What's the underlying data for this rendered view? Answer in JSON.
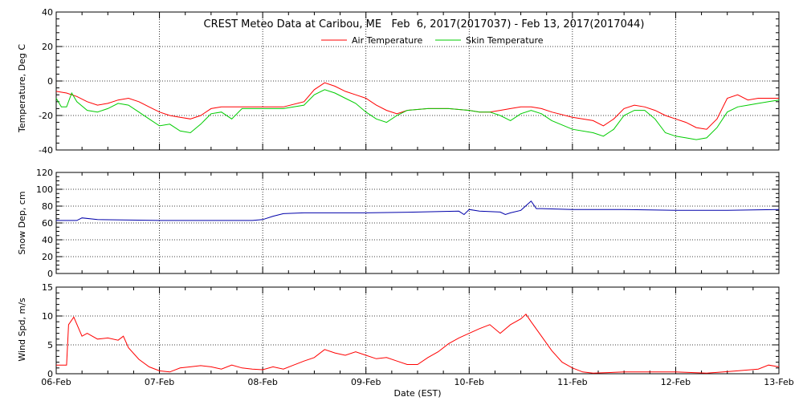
{
  "chart_data": [
    {
      "type": "line",
      "title": "CREST Meteo Data at Caribou, ME   Feb  6, 2017(2017037) - Feb 13, 2017(2017044)",
      "ylabel": "Temperature, Deg C",
      "ylim": [
        -40,
        40
      ],
      "yticks": [
        "40",
        "20",
        "0",
        "-20",
        "-40"
      ],
      "grid": true,
      "legend": "top-center",
      "series": [
        {
          "name": "Air Temperature",
          "color": "#ff0000",
          "points": [
            [
              0,
              -6
            ],
            [
              0.1,
              -7
            ],
            [
              0.2,
              -9
            ],
            [
              0.3,
              -12
            ],
            [
              0.4,
              -14
            ],
            [
              0.5,
              -13
            ],
            [
              0.6,
              -11
            ],
            [
              0.7,
              -10
            ],
            [
              0.8,
              -12
            ],
            [
              0.9,
              -15
            ],
            [
              1.0,
              -18
            ],
            [
              1.1,
              -20
            ],
            [
              1.2,
              -21
            ],
            [
              1.3,
              -22
            ],
            [
              1.4,
              -20
            ],
            [
              1.5,
              -16
            ],
            [
              1.6,
              -15
            ],
            [
              1.8,
              -15
            ],
            [
              2.0,
              -15
            ],
            [
              2.2,
              -15
            ],
            [
              2.4,
              -12
            ],
            [
              2.5,
              -5
            ],
            [
              2.6,
              -1
            ],
            [
              2.7,
              -3
            ],
            [
              2.8,
              -6
            ],
            [
              2.9,
              -8
            ],
            [
              3.0,
              -10
            ],
            [
              3.1,
              -14
            ],
            [
              3.2,
              -17
            ],
            [
              3.3,
              -19
            ],
            [
              3.4,
              -17
            ],
            [
              3.6,
              -16
            ],
            [
              3.8,
              -16
            ],
            [
              4.0,
              -17
            ],
            [
              4.1,
              -18
            ],
            [
              4.2,
              -18
            ],
            [
              4.3,
              -17
            ],
            [
              4.4,
              -16
            ],
            [
              4.5,
              -15
            ],
            [
              4.6,
              -15
            ],
            [
              4.7,
              -16
            ],
            [
              4.8,
              -18
            ],
            [
              5.0,
              -21
            ],
            [
              5.2,
              -23
            ],
            [
              5.3,
              -26
            ],
            [
              5.4,
              -22
            ],
            [
              5.5,
              -16
            ],
            [
              5.6,
              -14
            ],
            [
              5.7,
              -15
            ],
            [
              5.8,
              -17
            ],
            [
              5.9,
              -20
            ],
            [
              6.0,
              -22
            ],
            [
              6.1,
              -24
            ],
            [
              6.2,
              -27
            ],
            [
              6.3,
              -28
            ],
            [
              6.4,
              -22
            ],
            [
              6.5,
              -10
            ],
            [
              6.6,
              -8
            ],
            [
              6.7,
              -11
            ],
            [
              6.8,
              -10
            ],
            [
              6.9,
              -10
            ],
            [
              7.0,
              -10
            ]
          ]
        },
        {
          "name": "Skin Temperature",
          "color": "#00cc00",
          "points": [
            [
              0,
              -10
            ],
            [
              0.05,
              -15
            ],
            [
              0.1,
              -15
            ],
            [
              0.15,
              -7
            ],
            [
              0.2,
              -12
            ],
            [
              0.3,
              -17
            ],
            [
              0.4,
              -18
            ],
            [
              0.5,
              -16
            ],
            [
              0.6,
              -13
            ],
            [
              0.7,
              -14
            ],
            [
              0.8,
              -18
            ],
            [
              0.9,
              -22
            ],
            [
              1.0,
              -26
            ],
            [
              1.1,
              -25
            ],
            [
              1.2,
              -29
            ],
            [
              1.3,
              -30
            ],
            [
              1.4,
              -25
            ],
            [
              1.5,
              -19
            ],
            [
              1.6,
              -18
            ],
            [
              1.7,
              -22
            ],
            [
              1.8,
              -16
            ],
            [
              2.0,
              -16
            ],
            [
              2.2,
              -16
            ],
            [
              2.4,
              -14
            ],
            [
              2.5,
              -8
            ],
            [
              2.6,
              -5
            ],
            [
              2.7,
              -7
            ],
            [
              2.8,
              -10
            ],
            [
              2.9,
              -13
            ],
            [
              3.0,
              -18
            ],
            [
              3.1,
              -22
            ],
            [
              3.2,
              -24
            ],
            [
              3.3,
              -20
            ],
            [
              3.4,
              -17
            ],
            [
              3.6,
              -16
            ],
            [
              3.8,
              -16
            ],
            [
              4.0,
              -17
            ],
            [
              4.1,
              -18
            ],
            [
              4.2,
              -18
            ],
            [
              4.3,
              -20
            ],
            [
              4.4,
              -23
            ],
            [
              4.5,
              -19
            ],
            [
              4.6,
              -17
            ],
            [
              4.7,
              -19
            ],
            [
              4.8,
              -23
            ],
            [
              5.0,
              -28
            ],
            [
              5.2,
              -30
            ],
            [
              5.3,
              -32
            ],
            [
              5.4,
              -28
            ],
            [
              5.5,
              -20
            ],
            [
              5.6,
              -17
            ],
            [
              5.7,
              -17
            ],
            [
              5.8,
              -22
            ],
            [
              5.9,
              -30
            ],
            [
              6.0,
              -32
            ],
            [
              6.1,
              -33
            ],
            [
              6.2,
              -34
            ],
            [
              6.3,
              -33
            ],
            [
              6.4,
              -27
            ],
            [
              6.5,
              -18
            ],
            [
              6.6,
              -15
            ],
            [
              6.7,
              -14
            ],
            [
              6.8,
              -13
            ],
            [
              6.9,
              -12
            ],
            [
              7.0,
              -11
            ]
          ]
        }
      ]
    },
    {
      "type": "line",
      "ylabel": "Snow Dep, cm",
      "ylim": [
        0,
        120
      ],
      "yticks": [
        "120",
        "100",
        "80",
        "60",
        "40",
        "20",
        "0"
      ],
      "grid": true,
      "series": [
        {
          "color": "#0000aa",
          "points": [
            [
              0,
              63
            ],
            [
              0.2,
              63
            ],
            [
              0.25,
              66
            ],
            [
              0.4,
              64
            ],
            [
              1.0,
              63
            ],
            [
              1.5,
              63
            ],
            [
              1.9,
              63
            ],
            [
              2.0,
              64
            ],
            [
              2.1,
              68
            ],
            [
              2.2,
              71
            ],
            [
              2.4,
              72
            ],
            [
              2.6,
              72
            ],
            [
              3.0,
              72
            ],
            [
              3.5,
              73
            ],
            [
              3.9,
              74
            ],
            [
              3.95,
              70
            ],
            [
              4.0,
              76
            ],
            [
              4.1,
              74
            ],
            [
              4.3,
              73
            ],
            [
              4.35,
              70
            ],
            [
              4.4,
              72
            ],
            [
              4.5,
              75
            ],
            [
              4.6,
              86
            ],
            [
              4.65,
              77
            ],
            [
              4.7,
              77
            ],
            [
              5.0,
              76
            ],
            [
              5.5,
              76
            ],
            [
              6.0,
              75
            ],
            [
              6.5,
              75
            ],
            [
              7.0,
              76
            ]
          ]
        }
      ]
    },
    {
      "type": "line",
      "xlabel": "Date (EST)",
      "ylabel": "Wind Spd, m/s",
      "ylim": [
        0,
        15
      ],
      "yticks": [
        "15",
        "10",
        "5",
        "0"
      ],
      "x_tick_labels": [
        "06-Feb",
        "07-Feb",
        "08-Feb",
        "09-Feb",
        "10-Feb",
        "11-Feb",
        "12-Feb",
        "13-Feb"
      ],
      "xlim": [
        0,
        7
      ],
      "grid": true,
      "series": [
        {
          "color": "#ff0000",
          "points": [
            [
              0,
              1.5
            ],
            [
              0.1,
              1.5
            ],
            [
              0.12,
              8.5
            ],
            [
              0.17,
              9.8
            ],
            [
              0.25,
              6.5
            ],
            [
              0.3,
              7.0
            ],
            [
              0.4,
              6.0
            ],
            [
              0.5,
              6.2
            ],
            [
              0.6,
              5.8
            ],
            [
              0.65,
              6.5
            ],
            [
              0.7,
              4.5
            ],
            [
              0.8,
              2.5
            ],
            [
              0.9,
              1.2
            ],
            [
              1.0,
              0.5
            ],
            [
              1.1,
              0.3
            ],
            [
              1.2,
              1.0
            ],
            [
              1.3,
              1.2
            ],
            [
              1.4,
              1.4
            ],
            [
              1.5,
              1.2
            ],
            [
              1.6,
              0.8
            ],
            [
              1.7,
              1.5
            ],
            [
              1.8,
              1.0
            ],
            [
              1.9,
              0.8
            ],
            [
              2.0,
              0.7
            ],
            [
              2.1,
              1.2
            ],
            [
              2.2,
              0.8
            ],
            [
              2.3,
              1.5
            ],
            [
              2.4,
              2.2
            ],
            [
              2.5,
              2.8
            ],
            [
              2.6,
              4.2
            ],
            [
              2.7,
              3.6
            ],
            [
              2.8,
              3.2
            ],
            [
              2.9,
              3.8
            ],
            [
              3.0,
              3.2
            ],
            [
              3.1,
              2.6
            ],
            [
              3.2,
              2.8
            ],
            [
              3.3,
              2.2
            ],
            [
              3.4,
              1.6
            ],
            [
              3.5,
              1.6
            ],
            [
              3.6,
              2.8
            ],
            [
              3.7,
              3.8
            ],
            [
              3.8,
              5.2
            ],
            [
              3.9,
              6.2
            ],
            [
              4.0,
              7.0
            ],
            [
              4.1,
              7.8
            ],
            [
              4.2,
              8.5
            ],
            [
              4.3,
              7.0
            ],
            [
              4.4,
              8.5
            ],
            [
              4.5,
              9.5
            ],
            [
              4.55,
              10.3
            ],
            [
              4.6,
              9.0
            ],
            [
              4.7,
              6.5
            ],
            [
              4.8,
              4.0
            ],
            [
              4.9,
              2.0
            ],
            [
              5.0,
              1.0
            ],
            [
              5.1,
              0.3
            ],
            [
              5.2,
              0.1
            ],
            [
              5.5,
              0.3
            ],
            [
              6.0,
              0.3
            ],
            [
              6.3,
              0.1
            ],
            [
              6.6,
              0.5
            ],
            [
              6.8,
              0.8
            ],
            [
              6.9,
              1.5
            ],
            [
              7.0,
              1.2
            ]
          ]
        }
      ]
    }
  ]
}
